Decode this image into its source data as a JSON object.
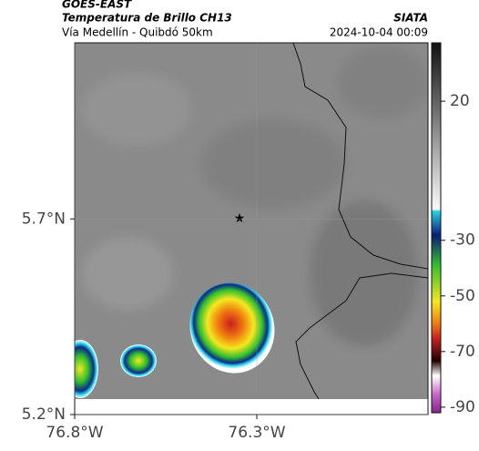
{
  "header": {
    "satellite": "GOES-EAST",
    "product": "Temperatura de Brillo CH13",
    "route": "Vía Medellín - Quibdó 50km",
    "source": "SIATA",
    "timestamp": "2024-10-04 00:09"
  },
  "map": {
    "xlim": [
      -76.8,
      -75.83
    ],
    "ylim": [
      5.2,
      6.15
    ],
    "xticks": [
      {
        "value": -76.8,
        "label": "76.8°W"
      },
      {
        "value": -76.3,
        "label": "76.3°W"
      }
    ],
    "yticks": [
      {
        "value": 5.2,
        "label": "5.2°N"
      },
      {
        "value": 5.7,
        "label": "5.7°N"
      }
    ]
  },
  "colorbar": {
    "lim": [
      -92,
      41
    ],
    "ticks": [
      20,
      -30,
      -50,
      -70,
      -90
    ]
  }
}
